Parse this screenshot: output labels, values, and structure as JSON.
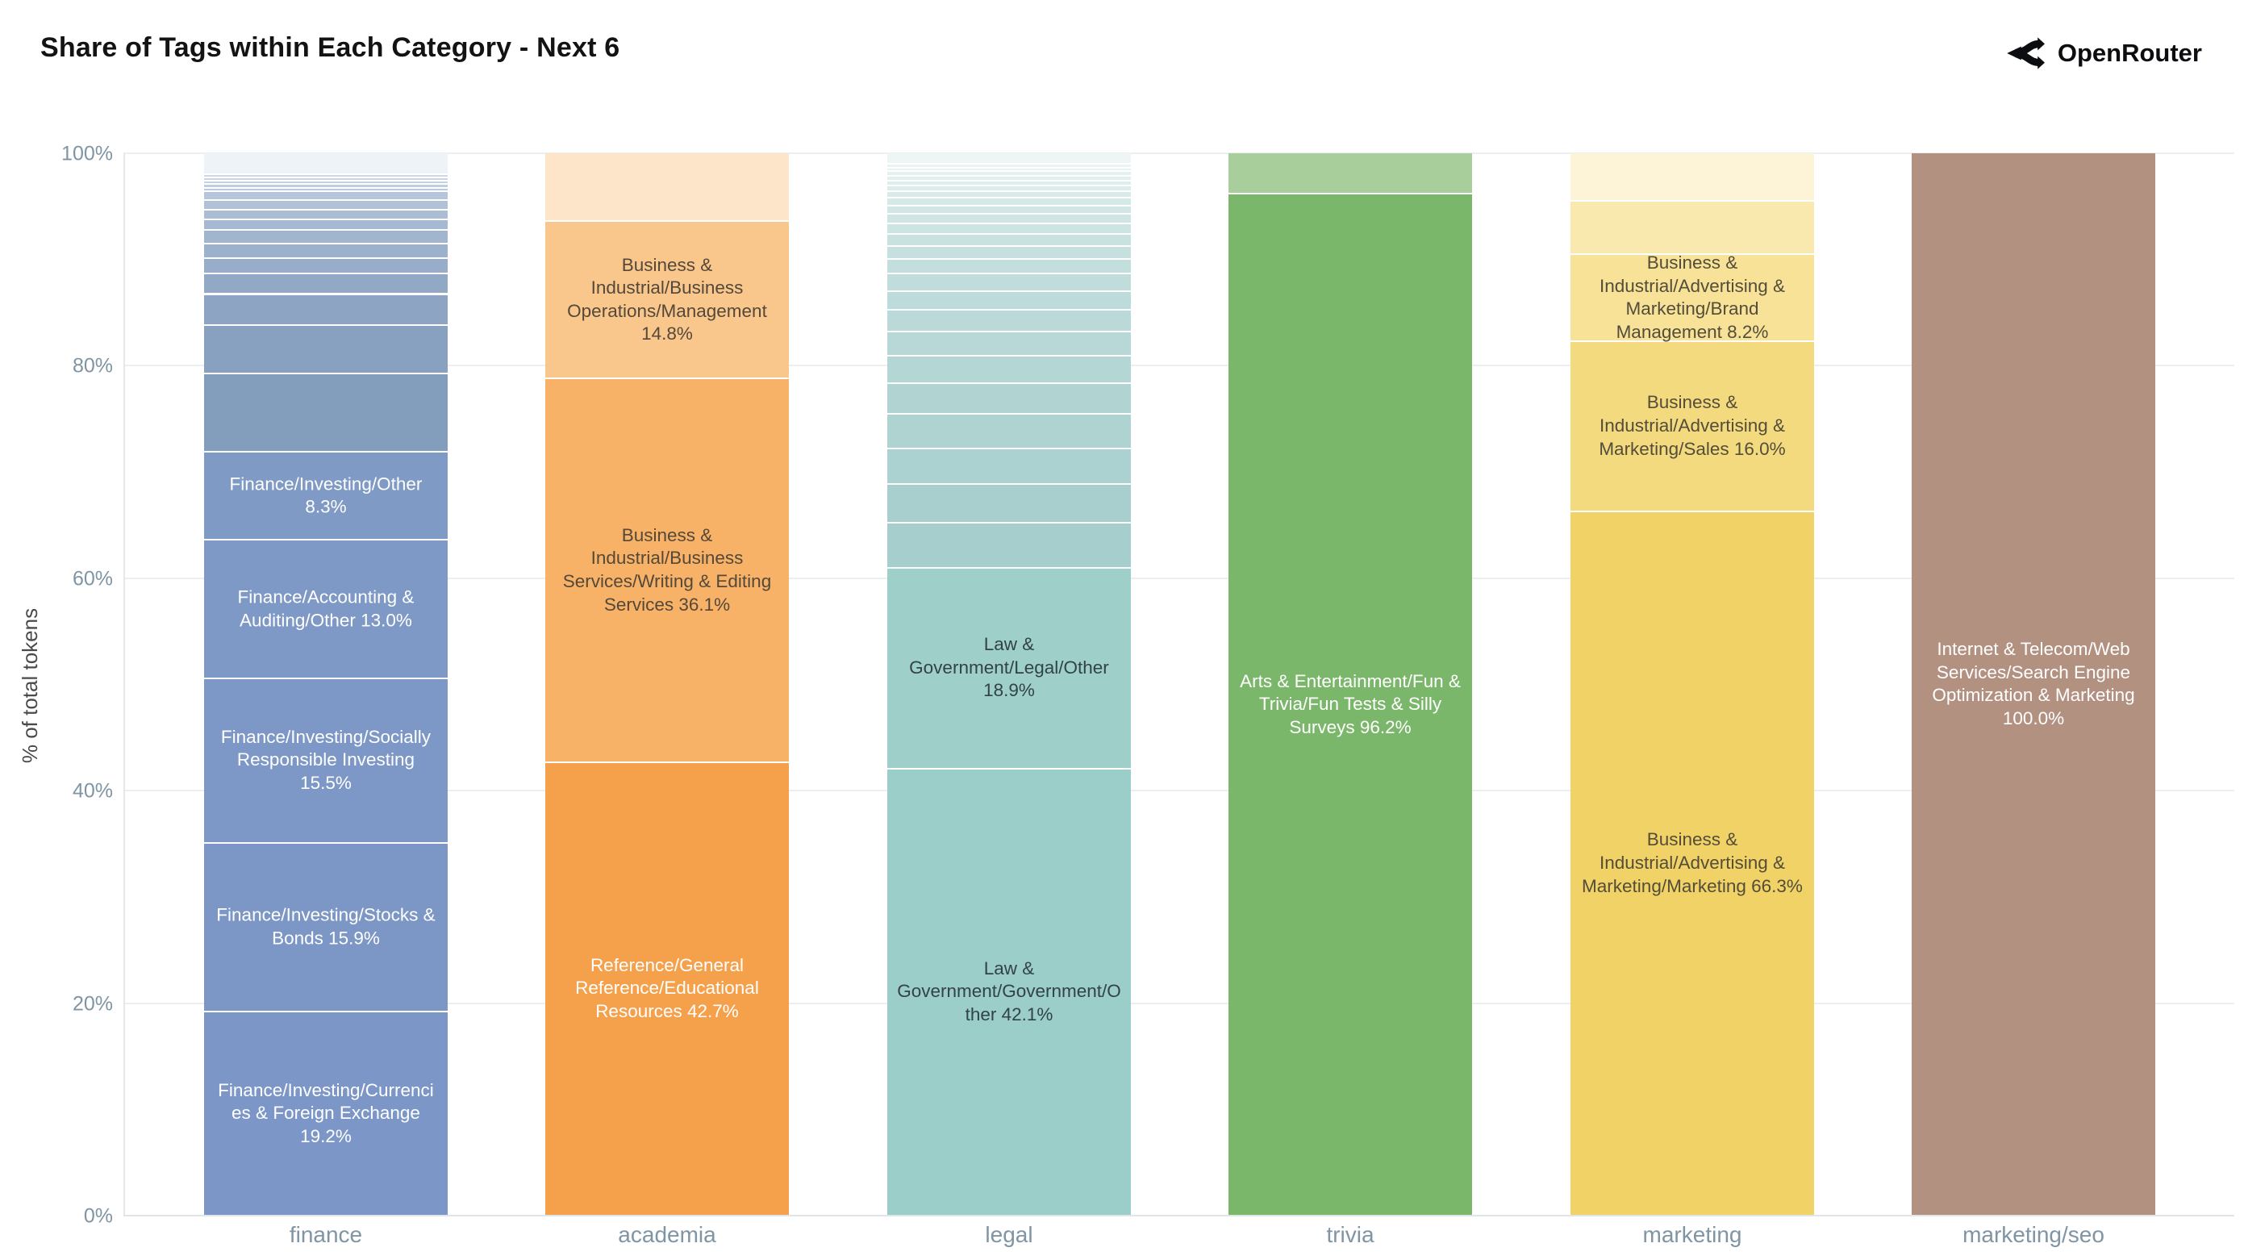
{
  "page": {
    "title": "Share of Tags within Each Category - Next 6",
    "brand": "OpenRouter"
  },
  "style": {
    "axis_text_color": "#7f95a3",
    "axis_title_color": "#4a4a4a",
    "title_color": "#131313",
    "grid_color": "#eceff1",
    "background": "#ffffff"
  },
  "chart_data": {
    "type": "bar",
    "stacked": true,
    "normalized": "percent",
    "segment_order": "top-to-bottom",
    "title": "Share of Tags within Each Category - Next 6",
    "xlabel": "",
    "ylabel": "% of total tokens",
    "ylim": [
      0,
      100
    ],
    "yticks": [
      "0%",
      "20%",
      "40%",
      "60%",
      "80%",
      "100%"
    ],
    "grid": true,
    "legend": "none",
    "categories": [
      "finance",
      "academia",
      "legal",
      "trivia",
      "marketing",
      "marketing/seo"
    ],
    "bars": [
      {
        "category": "finance",
        "segments": [
          {
            "value": 2.0,
            "color": "#eef3f8",
            "label": null
          },
          {
            "value": 0.3,
            "color": "#cdd9e9",
            "label": null
          },
          {
            "value": 0.3,
            "color": "#c8d5e6",
            "label": null
          },
          {
            "value": 0.3,
            "color": "#c3d1e4",
            "label": null
          },
          {
            "value": 0.35,
            "color": "#bfcde1",
            "label": null
          },
          {
            "value": 0.35,
            "color": "#bac9de",
            "label": null
          },
          {
            "value": 0.8,
            "color": "#b5c5db",
            "label": null
          },
          {
            "value": 0.9,
            "color": "#b0c1d8",
            "label": null
          },
          {
            "value": 0.95,
            "color": "#abbdd5",
            "label": null
          },
          {
            "value": 1.0,
            "color": "#a6b9d2",
            "label": null
          },
          {
            "value": 1.25,
            "color": "#a1b5cf",
            "label": null
          },
          {
            "value": 1.35,
            "color": "#9cb1cc",
            "label": null
          },
          {
            "value": 1.5,
            "color": "#97adc9",
            "label": null
          },
          {
            "value": 1.9,
            "color": "#92a9c6",
            "label": null
          },
          {
            "value": 2.9,
            "color": "#8da5c3",
            "label": null
          },
          {
            "value": 4.6,
            "color": "#88a1c0",
            "label": null
          },
          {
            "value": 7.35,
            "color": "#839dbd",
            "label": null
          },
          {
            "value": 8.3,
            "color": "#7f9ac4",
            "label": "Finance/Investing/Other 8.3%",
            "label_color": "#ffffff"
          },
          {
            "value": 13.0,
            "color": "#7e99c5",
            "label": "Finance/Accounting & Auditing/Other 13.0%",
            "label_color": "#ffffff"
          },
          {
            "value": 15.5,
            "color": "#7d98c6",
            "label": "Finance/Investing/Socially Responsible Investing 15.5%",
            "label_color": "#ffffff"
          },
          {
            "value": 15.9,
            "color": "#7c97c6",
            "label": "Finance/Investing/Stocks & Bonds 15.9%",
            "label_color": "#ffffff"
          },
          {
            "value": 19.2,
            "color": "#7b96c7",
            "label": "Finance/Investing/Currencies & Foreign Exchange 19.2%",
            "label_color": "#ffffff"
          }
        ]
      },
      {
        "category": "academia",
        "segments": [
          {
            "value": 6.4,
            "color": "#fce5c8",
            "label": null
          },
          {
            "value": 14.8,
            "color": "#f9c78c",
            "label": "Business & Industrial/Business Operations/Management 14.8%",
            "label_color": "#54483a"
          },
          {
            "value": 36.1,
            "color": "#f8b267",
            "label": "Business & Industrial/Business Services/Writing & Editing Services 36.1%",
            "label_color": "#54483a"
          },
          {
            "value": 42.7,
            "color": "#f5a04b",
            "label": "Reference/General Reference/Educational Resources 42.7%",
            "label_color": "#ffffff"
          }
        ]
      },
      {
        "category": "legal",
        "segments": [
          {
            "value": 1.0,
            "color": "#edf6f5",
            "label": null
          },
          {
            "value": 0.35,
            "color": "#eaf4f3",
            "label": null
          },
          {
            "value": 0.35,
            "color": "#e7f3f1",
            "label": null
          },
          {
            "value": 0.4,
            "color": "#e4f1ef",
            "label": null
          },
          {
            "value": 0.45,
            "color": "#e1efee",
            "label": null
          },
          {
            "value": 0.5,
            "color": "#deeeec",
            "label": null
          },
          {
            "value": 0.55,
            "color": "#dbecea",
            "label": null
          },
          {
            "value": 0.6,
            "color": "#d8eae9",
            "label": null
          },
          {
            "value": 0.7,
            "color": "#d5e9e7",
            "label": null
          },
          {
            "value": 0.8,
            "color": "#d2e7e5",
            "label": null
          },
          {
            "value": 0.9,
            "color": "#cfe5e4",
            "label": null
          },
          {
            "value": 1.0,
            "color": "#cce4e2",
            "label": null
          },
          {
            "value": 1.1,
            "color": "#c9e2e0",
            "label": null
          },
          {
            "value": 1.25,
            "color": "#c6e0df",
            "label": null
          },
          {
            "value": 1.4,
            "color": "#c3dfdd",
            "label": null
          },
          {
            "value": 1.6,
            "color": "#c0dddb",
            "label": null
          },
          {
            "value": 1.8,
            "color": "#bddbda",
            "label": null
          },
          {
            "value": 2.0,
            "color": "#bad9d8",
            "label": null
          },
          {
            "value": 2.3,
            "color": "#b7d8d6",
            "label": null
          },
          {
            "value": 2.6,
            "color": "#b4d6d5",
            "label": null
          },
          {
            "value": 2.9,
            "color": "#b1d4d3",
            "label": null
          },
          {
            "value": 3.25,
            "color": "#aed3d1",
            "label": null
          },
          {
            "value": 3.3,
            "color": "#abd1d0",
            "label": null
          },
          {
            "value": 3.7,
            "color": "#a8cfce",
            "label": null
          },
          {
            "value": 4.2,
            "color": "#a5cecc",
            "label": null
          },
          {
            "value": 18.9,
            "color": "#9ed0c9",
            "label": "Law & Government/Legal/Other 18.9%",
            "label_color": "#33424a"
          },
          {
            "value": 42.1,
            "color": "#9bcec8",
            "label": "Law & Government/Government/Other 42.1%",
            "label_color": "#33424a"
          }
        ]
      },
      {
        "category": "trivia",
        "segments": [
          {
            "value": 3.8,
            "color": "#a8cf9b",
            "label": null
          },
          {
            "value": 96.2,
            "color": "#7bb76a",
            "label": "Arts & Entertainment/Fun & Trivia/Fun Tests & Silly Surveys 96.2%",
            "label_color": "#ffffff"
          }
        ]
      },
      {
        "category": "marketing",
        "segments": [
          {
            "value": 4.5,
            "color": "#fdf4d8",
            "label": null
          },
          {
            "value": 5.0,
            "color": "#f9e9ae",
            "label": null
          },
          {
            "value": 8.2,
            "color": "#f7e298",
            "label": "Business & Industrial/Advertising & Marketing/Brand Management 8.2%",
            "label_color": "#534d3a"
          },
          {
            "value": 16.0,
            "color": "#f4da7e",
            "label": "Business & Industrial/Advertising & Marketing/Sales 16.0%",
            "label_color": "#534d3a"
          },
          {
            "value": 66.3,
            "color": "#f0d266",
            "label": "Business & Industrial/Advertising & Marketing/Marketing 66.3%",
            "label_color": "#534d3a"
          }
        ]
      },
      {
        "category": "marketing/seo",
        "segments": [
          {
            "value": 100.0,
            "color": "#b39181",
            "label": "Internet & Telecom/Web Services/Search Engine Optimization & Marketing 100.0%",
            "label_color": "#ffffff"
          }
        ]
      }
    ]
  }
}
